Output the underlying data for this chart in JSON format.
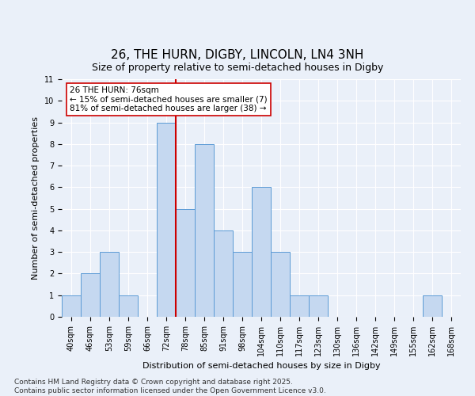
{
  "title1": "26, THE HURN, DIGBY, LINCOLN, LN4 3NH",
  "title2": "Size of property relative to semi-detached houses in Digby",
  "xlabel": "Distribution of semi-detached houses by size in Digby",
  "ylabel": "Number of semi-detached properties",
  "categories": [
    "40sqm",
    "46sqm",
    "53sqm",
    "59sqm",
    "66sqm",
    "72sqm",
    "78sqm",
    "85sqm",
    "91sqm",
    "98sqm",
    "104sqm",
    "110sqm",
    "117sqm",
    "123sqm",
    "130sqm",
    "136sqm",
    "142sqm",
    "149sqm",
    "155sqm",
    "162sqm",
    "168sqm"
  ],
  "values": [
    1,
    2,
    3,
    1,
    0,
    9,
    5,
    8,
    4,
    3,
    6,
    3,
    1,
    1,
    0,
    0,
    0,
    0,
    0,
    1,
    0
  ],
  "bar_color": "#c5d8f0",
  "bar_edge_color": "#5b9bd5",
  "reference_line_label": "26 THE HURN: 76sqm",
  "pct_smaller": "15%",
  "n_smaller": 7,
  "pct_larger": "81%",
  "n_larger": 38,
  "annotation_box_color": "#ffffff",
  "annotation_box_edge": "#cc0000",
  "ref_line_color": "#cc0000",
  "ylim": [
    0,
    11
  ],
  "yticks": [
    0,
    1,
    2,
    3,
    4,
    5,
    6,
    7,
    8,
    9,
    10,
    11
  ],
  "footnote": "Contains HM Land Registry data © Crown copyright and database right 2025.\nContains public sector information licensed under the Open Government Licence v3.0.",
  "background_color": "#eaf0f9",
  "grid_color": "#ffffff",
  "title_fontsize": 11,
  "subtitle_fontsize": 9,
  "axis_label_fontsize": 8,
  "tick_fontsize": 7,
  "footnote_fontsize": 6.5,
  "annot_fontsize": 7.5
}
